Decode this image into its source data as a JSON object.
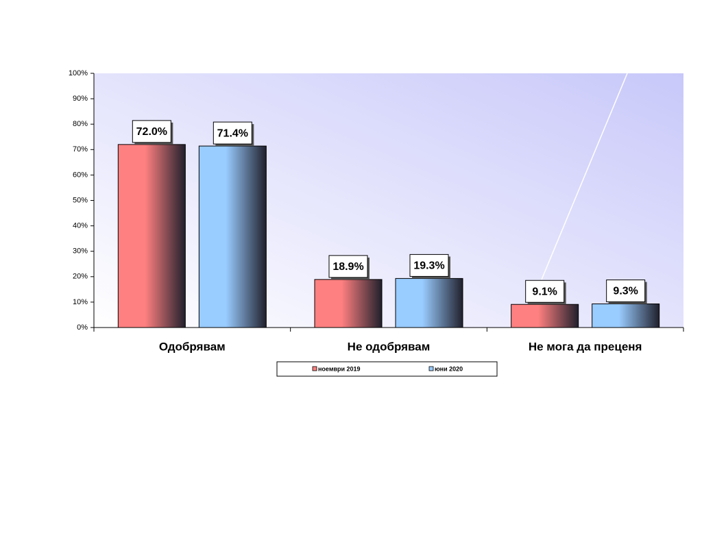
{
  "chart_data": {
    "type": "bar",
    "categories": [
      "Одобрявам",
      "Не одобрявам",
      "Не мога да преценя"
    ],
    "series": [
      {
        "name": "ноември 2019",
        "color": "#ff8080",
        "values": [
          72.0,
          18.9,
          9.1
        ],
        "value_labels": [
          "72.0%",
          "18.9%",
          "9.1%"
        ]
      },
      {
        "name": "юни 2020",
        "color": "#99ccff",
        "values": [
          71.4,
          19.3,
          9.3
        ],
        "value_labels": [
          "71.4%",
          "19.3%",
          "9.3%"
        ]
      }
    ],
    "ylim": [
      0,
      100
    ],
    "yticks": [
      {
        "value": 0,
        "label": "0%"
      },
      {
        "value": 10,
        "label": "10%"
      },
      {
        "value": 20,
        "label": "20%"
      },
      {
        "value": 30,
        "label": "30%"
      },
      {
        "value": 40,
        "label": "40%"
      },
      {
        "value": 50,
        "label": "50%"
      },
      {
        "value": 60,
        "label": "60%"
      },
      {
        "value": 70,
        "label": "70%"
      },
      {
        "value": 80,
        "label": "80%"
      },
      {
        "value": 90,
        "label": "90%"
      },
      {
        "value": 100,
        "label": "100%"
      }
    ],
    "legend": "bottom"
  }
}
